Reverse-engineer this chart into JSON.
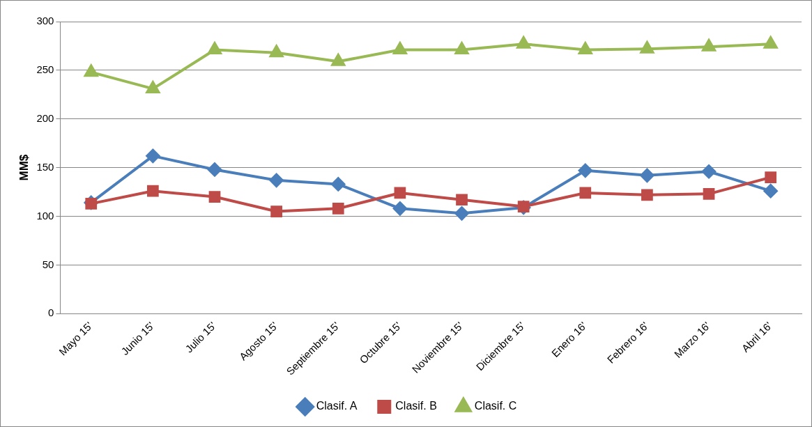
{
  "chart_data": {
    "type": "line",
    "ylabel": "MM$",
    "categories": [
      "Mayo 15'",
      "Junio 15'",
      "Julio 15'",
      "Agosto 15'",
      "Septiembre 15'",
      "Octubre 15'",
      "Noviembre 15'",
      "Diciembre 15'",
      "Enero 16'",
      "Febrero 16'",
      "Marzo 16'",
      "Abril 16'"
    ],
    "series": [
      {
        "name": "Clasif. A",
        "color": "#4a7ebb",
        "marker": "diamond",
        "values": [
          114,
          162,
          148,
          137,
          133,
          108,
          103,
          109,
          147,
          142,
          146,
          126
        ]
      },
      {
        "name": "Clasif. B",
        "color": "#be4b48",
        "marker": "square",
        "values": [
          113,
          126,
          120,
          105,
          108,
          124,
          117,
          110,
          124,
          122,
          123,
          140
        ]
      },
      {
        "name": "Clasif. C",
        "color": "#98b954",
        "marker": "triangle",
        "values": [
          248,
          231,
          271,
          268,
          259,
          271,
          271,
          277,
          271,
          272,
          274,
          277
        ]
      }
    ],
    "ylim": [
      0,
      300
    ],
    "yticks": [
      0,
      50,
      100,
      150,
      200,
      250,
      300
    ],
    "grid": "y",
    "legend": "bottom",
    "line_style": "solid"
  }
}
